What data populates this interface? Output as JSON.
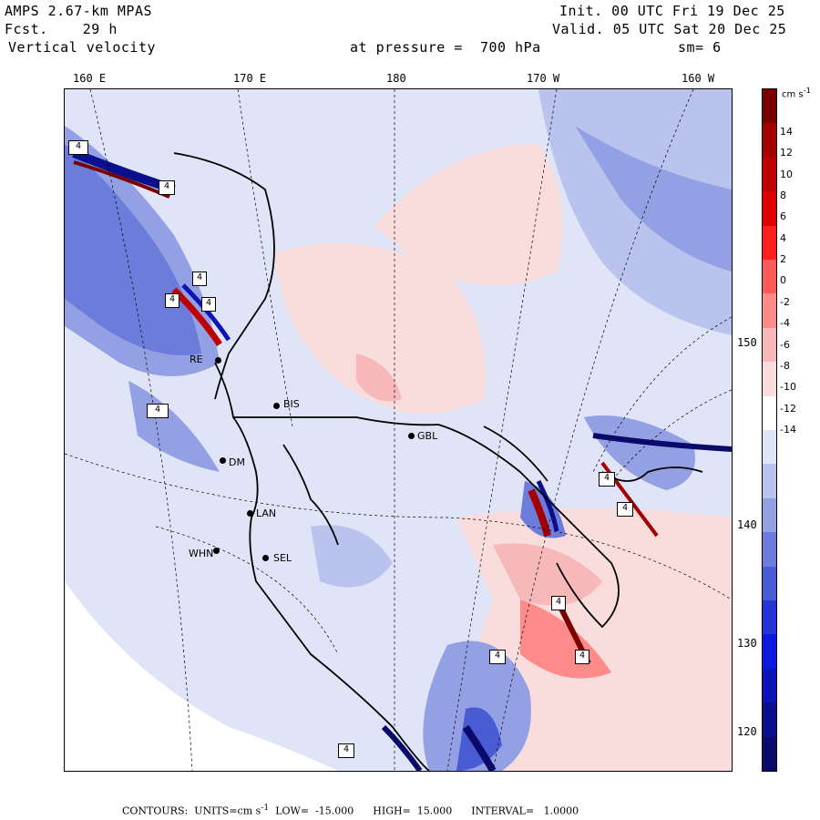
{
  "header": {
    "model": "AMPS 2.67-km MPAS",
    "forecast": "Fcst.    29 h",
    "field": "Vertical velocity",
    "level": "at pressure =  700 hPa",
    "init": "Init. 00 UTC Fri 19 Dec 25",
    "valid": "Valid. 05 UTC Sat 20 Dec 25",
    "smooth": "sm= 6"
  },
  "longitude_labels": [
    "160 E",
    "170 E",
    "180",
    "170 W",
    "160 W"
  ],
  "latitude_labels": [
    "150 W",
    "140 W",
    "130 W",
    "120 W"
  ],
  "stations": [
    "BIS",
    "RE",
    "DM",
    "LAN",
    "WHN",
    "SEL",
    "GBL"
  ],
  "contour_box_labels": [
    "4",
    "4",
    "4",
    "4",
    "4",
    "4",
    "4",
    "4",
    "4",
    "4",
    "4",
    "4"
  ],
  "colorbar": {
    "unit": "cm s",
    "unit_exp": "-1",
    "levels": [
      "14",
      "12",
      "10",
      "8",
      "6",
      "4",
      "2",
      "0",
      "-2",
      "-4",
      "-6",
      "-8",
      "-10",
      "-12",
      "-14"
    ],
    "colors": [
      "#7a0000",
      "#a40000",
      "#c00000",
      "#e00000",
      "#ff1e1e",
      "#ff5a5a",
      "#ff8a8a",
      "#f6b8b8",
      "#f9dcdc",
      "#ffffff",
      "#dfe4f6",
      "#b9c3ee",
      "#93a1e4",
      "#6b7cdb",
      "#4a5cd4",
      "#2434d8",
      "#0a18e0",
      "#0a14b8",
      "#0a0f8e",
      "#0a0a6a"
    ]
  },
  "footer": {
    "contours": "CONTOURS:",
    "units": "UNITS=cm s",
    "units_exp": "-1",
    "low": "LOW=  -15.000",
    "high": "HIGH=  15.000",
    "interval": "INTERVAL=   1.0000"
  }
}
